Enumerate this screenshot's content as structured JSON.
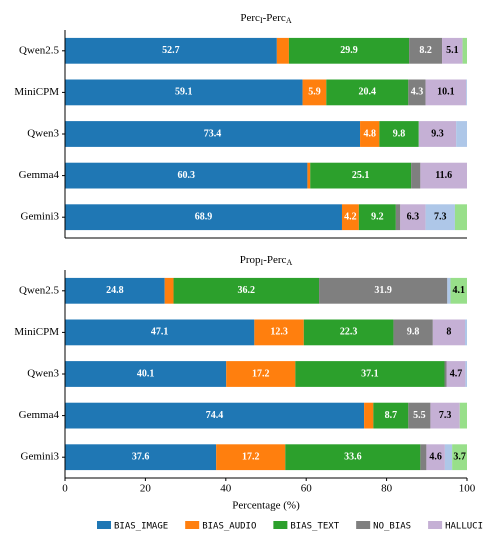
{
  "chart_data": [
    {
      "type": "stacked-barh",
      "title": [
        "Perc",
        "I",
        "-Perc",
        "A"
      ],
      "categories": [
        "Qwen2.5",
        "MiniCPM",
        "Qwen3",
        "Gemma4",
        "Gemini3"
      ],
      "xlim": [
        0,
        100
      ],
      "series": [
        {
          "color": "#1f77b4",
          "label_color": "#ffffff",
          "values": [
            52.7,
            59.1,
            73.4,
            60.3,
            68.9
          ]
        },
        {
          "color": "#ff7f0e",
          "label_color": "#ffffff",
          "values": [
            3.0,
            5.9,
            4.8,
            0.7,
            4.2
          ]
        },
        {
          "color": "#2ca02c",
          "label_color": "#ffffff",
          "values": [
            29.9,
            20.4,
            9.8,
            25.1,
            9.2
          ]
        },
        {
          "color": "#7f7f7f",
          "label_color": "#ffffff",
          "values": [
            8.2,
            4.3,
            0,
            2.3,
            1.1
          ]
        },
        {
          "color": "#c5b0d5",
          "label_color": "#000000",
          "values": [
            5.1,
            10.1,
            9.3,
            11.6,
            6.3
          ]
        },
        {
          "color": "#aec7e8",
          "label_color": "#000000",
          "values": [
            0,
            0.2,
            2.7,
            0,
            7.3
          ]
        },
        {
          "color": "#98df8a",
          "label_color": "#000000",
          "values": [
            1.1,
            0,
            0,
            0,
            3.0
          ]
        }
      ]
    },
    {
      "type": "stacked-barh",
      "title": [
        "Prop",
        "I",
        "-Perc",
        "A"
      ],
      "categories": [
        "Qwen2.5",
        "MiniCPM",
        "Qwen3",
        "Gemma4",
        "Gemini3"
      ],
      "xlim": [
        0,
        100
      ],
      "xticks": [
        0,
        20,
        40,
        60,
        80,
        100
      ],
      "xlabel": "Percentage (%)",
      "series": [
        {
          "name": "BIAS_IMAGE",
          "color": "#1f77b4",
          "label_color": "#ffffff",
          "values": [
            24.8,
            47.1,
            40.1,
            74.4,
            37.6
          ]
        },
        {
          "name": "BIAS_AUDIO",
          "color": "#ff7f0e",
          "label_color": "#ffffff",
          "values": [
            2.2,
            12.3,
            17.2,
            2.3,
            17.2
          ]
        },
        {
          "name": "BIAS_TEXT",
          "color": "#2ca02c",
          "label_color": "#ffffff",
          "values": [
            36.2,
            22.3,
            37.1,
            8.7,
            33.6
          ]
        },
        {
          "name": "NO_BIAS",
          "color": "#7f7f7f",
          "label_color": "#ffffff",
          "values": [
            31.9,
            9.8,
            0.5,
            5.5,
            1.5
          ]
        },
        {
          "name": "HALLUCINA",
          "color": "#c5b0d5",
          "label_color": "#000000",
          "values": [
            0,
            8.0,
            4.7,
            7.3,
            4.6
          ]
        },
        {
          "color": "#aec7e8",
          "label_color": "#000000",
          "values": [
            0.8,
            0.5,
            0.4,
            0,
            1.8
          ]
        },
        {
          "color": "#98df8a",
          "label_color": "#000000",
          "values": [
            4.1,
            0,
            0,
            1.8,
            3.7
          ]
        }
      ]
    }
  ]
}
